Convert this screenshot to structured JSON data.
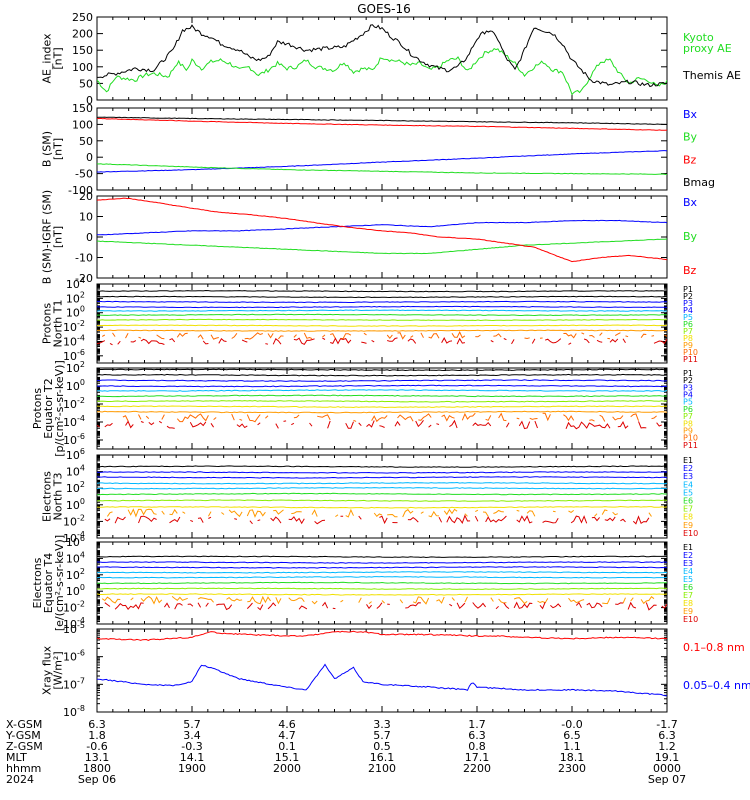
{
  "title": "GOES-16",
  "colors": {
    "black": "#000000",
    "red": "#ff0000",
    "green": "#22dd22",
    "blue": "#0000ff",
    "cyan": "#00b8ff",
    "teal": "#00c8b0",
    "lime": "#88ee00",
    "yellow": "#f0e000",
    "orange": "#ff9a00",
    "darkorange": "#ff6a00",
    "darkred": "#dd0000"
  },
  "chart_data": [
    {
      "id": "ae",
      "type": "line",
      "ylabel": [
        "AE_index",
        "[nT]"
      ],
      "ylim": [
        0,
        250
      ],
      "yticks": [
        "0",
        "50",
        "100",
        "150",
        "200",
        "250"
      ],
      "series": [
        {
          "name": "Kyoto proxy AE",
          "color": "green",
          "label_lines": [
            "Kyoto",
            "proxy AE"
          ],
          "x": [
            0,
            0.1,
            0.2,
            0.3,
            0.4,
            0.5,
            0.6,
            0.75,
            0.85,
            0.95,
            1.0,
            1.1,
            1.2,
            1.3,
            1.4,
            1.5,
            1.6,
            1.7,
            1.8,
            1.9,
            2.0,
            2.1,
            2.2,
            2.3,
            2.4,
            2.5,
            2.6,
            2.7,
            2.8,
            2.9,
            3.0,
            3.1,
            3.2,
            3.3,
            3.4,
            3.5,
            3.6,
            3.7,
            3.8,
            3.9,
            4.0,
            4.1,
            4.2,
            4.3,
            4.4,
            4.5,
            4.6,
            4.7,
            4.8,
            4.9,
            5.0,
            5.1,
            5.2,
            5.3,
            5.4,
            5.5,
            5.6,
            5.7,
            5.8,
            5.9,
            6.0
          ],
          "y": [
            60,
            25,
            70,
            65,
            60,
            75,
            80,
            70,
            115,
            90,
            120,
            95,
            115,
            120,
            110,
            90,
            100,
            75,
            90,
            110,
            95,
            100,
            120,
            100,
            95,
            90,
            115,
            85,
            95,
            90,
            130,
            120,
            115,
            105,
            110,
            90,
            100,
            120,
            125,
            85,
            120,
            145,
            155,
            135,
            110,
            75,
            100,
            115,
            90,
            85,
            20,
            25,
            75,
            115,
            120,
            80,
            50,
            65,
            60,
            40,
            55
          ]
        },
        {
          "name": "Themis AE",
          "color": "black",
          "label_lines": [
            "Themis AE"
          ],
          "x": [
            0,
            0.2,
            0.4,
            0.6,
            0.8,
            0.9,
            1.0,
            1.1,
            1.2,
            1.3,
            1.4,
            1.5,
            1.6,
            1.7,
            1.8,
            1.9,
            2.0,
            2.2,
            2.4,
            2.6,
            2.8,
            2.9,
            3.0,
            3.1,
            3.2,
            3.3,
            3.4,
            3.5,
            3.6,
            3.7,
            3.8,
            3.9,
            4.0,
            4.1,
            4.2,
            4.3,
            4.4,
            4.5,
            4.6,
            4.7,
            4.8,
            4.9,
            5.0,
            5.2,
            5.4,
            5.6,
            5.8,
            6.0
          ],
          "y": [
            70,
            80,
            95,
            90,
            150,
            210,
            220,
            200,
            190,
            170,
            160,
            150,
            130,
            120,
            130,
            175,
            170,
            150,
            155,
            160,
            200,
            225,
            215,
            190,
            170,
            140,
            120,
            105,
            95,
            90,
            100,
            130,
            185,
            210,
            195,
            130,
            90,
            150,
            220,
            210,
            200,
            170,
            120,
            60,
            45,
            55,
            45,
            50
          ]
        }
      ]
    },
    {
      "id": "bsm",
      "type": "line",
      "ylabel": [
        "B (SM)",
        "[nT]"
      ],
      "ylim": [
        -100,
        150
      ],
      "yticks": [
        "-100",
        "-50",
        "0",
        "50",
        "100",
        "150"
      ],
      "series": [
        {
          "name": "Bx",
          "color": "blue",
          "label_lines": [
            "Bx"
          ],
          "x": [
            0,
            1,
            2,
            3,
            4,
            5,
            6
          ],
          "y": [
            -45,
            -38,
            -28,
            -15,
            -3,
            10,
            20
          ]
        },
        {
          "name": "By",
          "color": "green",
          "label_lines": [
            "By"
          ],
          "x": [
            0,
            1,
            2,
            3,
            4,
            5,
            6
          ],
          "y": [
            -20,
            -30,
            -38,
            -43,
            -48,
            -50,
            -52
          ]
        },
        {
          "name": "Bz",
          "color": "red",
          "label_lines": [
            "Bz"
          ],
          "x": [
            0,
            1,
            2,
            3,
            4,
            5,
            6
          ],
          "y": [
            118,
            110,
            103,
            98,
            94,
            88,
            82
          ]
        },
        {
          "name": "Bmag",
          "color": "black",
          "label_lines": [
            "Bmag"
          ],
          "x": [
            0,
            1,
            2,
            3,
            4,
            5,
            6
          ],
          "y": [
            122,
            118,
            115,
            112,
            108,
            105,
            100
          ]
        }
      ]
    },
    {
      "id": "bigrf",
      "type": "line",
      "ylabel": [
        "B (SM)-IGRF (SM)",
        "[nT]"
      ],
      "ylim": [
        -20,
        20
      ],
      "yticks": [
        "-20",
        "-10",
        "0",
        "10",
        "20"
      ],
      "series": [
        {
          "name": "Bx",
          "color": "blue",
          "label_lines": [
            "Bx"
          ],
          "x": [
            0,
            0.5,
            1,
            1.5,
            2,
            2.5,
            3,
            3.5,
            4,
            4.5,
            5,
            5.5,
            6
          ],
          "y": [
            1,
            2,
            3,
            3,
            4,
            5,
            6,
            5,
            7,
            7,
            8,
            8,
            7
          ]
        },
        {
          "name": "By",
          "color": "green",
          "label_lines": [
            "By"
          ],
          "x": [
            0,
            0.5,
            1,
            1.5,
            2,
            2.5,
            3,
            3.5,
            4,
            4.5,
            5,
            5.5,
            6
          ],
          "y": [
            -2,
            -3,
            -4,
            -5,
            -6,
            -7,
            -8,
            -8,
            -6,
            -4,
            -3,
            -2,
            -1
          ]
        },
        {
          "name": "Bz",
          "color": "red",
          "label_lines": [
            "Bz"
          ],
          "x": [
            0,
            0.3,
            0.6,
            1,
            1.3,
            1.6,
            2,
            2.3,
            2.6,
            3,
            3.3,
            3.6,
            4,
            4.3,
            4.6,
            5,
            5.3,
            5.6,
            6
          ],
          "y": [
            18,
            19,
            17,
            14,
            12,
            11,
            9,
            7,
            5,
            3,
            2,
            0,
            -1,
            -3,
            -5,
            -12,
            -10,
            -9,
            -11
          ]
        }
      ]
    },
    {
      "id": "pn",
      "type": "line",
      "log": true,
      "ylabel": [
        "Protons",
        "North T1"
      ],
      "ylim_exp": [
        -7,
        4
      ],
      "ytick_exps": [
        -6,
        -4,
        -2,
        0,
        2,
        4
      ],
      "labels": [
        "P1",
        "P2",
        "P3",
        "P4",
        "P5",
        "P6",
        "P7",
        "P8",
        "P9",
        "P10",
        "P11"
      ],
      "label_colors": [
        "black",
        "black",
        "blue",
        "blue",
        "cyan",
        "green",
        "lime",
        "yellow",
        "orange",
        "darkorange",
        "darkred"
      ],
      "levels": [
        3.0,
        2.2,
        1.5,
        0.8,
        0.3,
        -0.3,
        -1.0,
        -1.8,
        -2.5,
        -3.2,
        -4.0
      ]
    },
    {
      "id": "pe",
      "type": "line",
      "log": true,
      "ylabel": [
        "Protons",
        "Equator T2",
        "[p/(cm²-s-sr-keV)]"
      ],
      "ylim_exp": [
        -7,
        2
      ],
      "ytick_exps": [
        -6,
        -4,
        -2,
        0,
        2
      ],
      "labels": [
        "P1",
        "P2",
        "P3",
        "P4",
        "P5",
        "P6",
        "P7",
        "P8",
        "P9",
        "P10",
        "P11"
      ],
      "label_colors": [
        "black",
        "black",
        "blue",
        "blue",
        "cyan",
        "green",
        "lime",
        "yellow",
        "orange",
        "darkorange",
        "darkred"
      ],
      "levels": [
        1.8,
        1.2,
        0.6,
        0.0,
        -0.5,
        -1.1,
        -1.7,
        -2.3,
        -2.9,
        -3.5,
        -4.3
      ]
    },
    {
      "id": "en",
      "type": "line",
      "log": true,
      "ylabel": [
        "Electrons",
        "North T3"
      ],
      "ylim_exp": [
        -4,
        6
      ],
      "ytick_exps": [
        -4,
        -2,
        0,
        2,
        4,
        6
      ],
      "labels": [
        "E1",
        "E2",
        "E3",
        "E4",
        "E5",
        "E6",
        "E7",
        "E8",
        "E9",
        "E10"
      ],
      "label_colors": [
        "black",
        "blue",
        "blue",
        "cyan",
        "cyan",
        "green",
        "lime",
        "yellow",
        "orange",
        "darkred"
      ],
      "levels": [
        4.6,
        3.9,
        3.3,
        2.6,
        2.0,
        1.3,
        0.5,
        -0.3,
        -1.0,
        -1.8
      ]
    },
    {
      "id": "ee",
      "type": "line",
      "log": true,
      "ylabel": [
        "Electrons",
        "Equator T4",
        "[e/(cm²-s-sr-keV)]"
      ],
      "ylim_exp": [
        -4,
        6
      ],
      "ytick_exps": [
        -4,
        -2,
        0,
        2,
        4,
        6
      ],
      "labels": [
        "E1",
        "E2",
        "E3",
        "E4",
        "E5",
        "E6",
        "E7",
        "E8",
        "E9",
        "E10"
      ],
      "label_colors": [
        "black",
        "blue",
        "blue",
        "cyan",
        "cyan",
        "green",
        "lime",
        "yellow",
        "orange",
        "darkred"
      ],
      "levels": [
        4.2,
        3.5,
        2.9,
        2.3,
        1.7,
        1.0,
        0.3,
        -0.4,
        -1.1,
        -1.8
      ]
    },
    {
      "id": "xray",
      "type": "line",
      "log": true,
      "ylabel": [
        "Xray flux",
        "[W/m²]"
      ],
      "ylim_exp": [
        -8,
        -5
      ],
      "ytick_exps": [
        -8,
        -7,
        -6,
        -5
      ],
      "series": [
        {
          "name": "0.1-0.8 nm",
          "color": "red",
          "label_lines": [
            "0.1–0.8 nm"
          ],
          "x": [
            0,
            0.5,
            1.0,
            1.2,
            1.3,
            1.6,
            2.0,
            2.2,
            2.5,
            2.8,
            3.0,
            3.5,
            4.0,
            4.2,
            4.5,
            5.0,
            5.5,
            6.0
          ],
          "y": [
            -5.35,
            -5.4,
            -5.3,
            -5.1,
            -5.15,
            -5.2,
            -5.25,
            -5.25,
            -5.1,
            -5.1,
            -5.2,
            -5.2,
            -5.25,
            -5.25,
            -5.3,
            -5.35,
            -5.3,
            -5.35
          ]
        },
        {
          "name": "0.05-0.4 nm",
          "color": "blue",
          "label_lines": [
            "0.05–0.4 nm"
          ],
          "x": [
            0,
            0.5,
            0.8,
            1.0,
            1.1,
            1.2,
            1.5,
            2.0,
            2.2,
            2.4,
            2.5,
            2.7,
            2.8,
            3.0,
            3.5,
            3.9,
            3.95,
            4.0,
            4.5,
            5.0,
            5.5,
            6.0
          ],
          "y": [
            -6.8,
            -7.0,
            -7.05,
            -6.9,
            -6.3,
            -6.4,
            -6.8,
            -7.1,
            -7.2,
            -6.3,
            -6.8,
            -6.4,
            -6.9,
            -7.0,
            -7.1,
            -7.2,
            -6.9,
            -7.1,
            -7.2,
            -7.2,
            -7.25,
            -7.4
          ]
        }
      ]
    }
  ],
  "x_axis": {
    "rows": [
      {
        "label": "X-GSM",
        "values": [
          "6.3",
          "5.7",
          "4.6",
          "3.3",
          "1.7",
          "-0.0",
          "-1.7"
        ]
      },
      {
        "label": "Y-GSM",
        "values": [
          "1.8",
          "3.4",
          "4.7",
          "5.7",
          "6.3",
          "6.5",
          "6.3"
        ]
      },
      {
        "label": "Z-GSM",
        "values": [
          "-0.6",
          "-0.3",
          "0.1",
          "0.5",
          "0.8",
          "1.1",
          "1.2"
        ]
      },
      {
        "label": "MLT",
        "values": [
          "13.1",
          "14.1",
          "15.1",
          "16.1",
          "17.1",
          "18.1",
          "19.1"
        ]
      },
      {
        "label": "hhmm",
        "values": [
          "1800",
          "1900",
          "2000",
          "2100",
          "2200",
          "2300",
          "0000"
        ]
      },
      {
        "label": "2024",
        "values": [
          "Sep 06",
          "",
          "",
          "",
          "",
          "",
          "Sep 07"
        ]
      }
    ]
  }
}
